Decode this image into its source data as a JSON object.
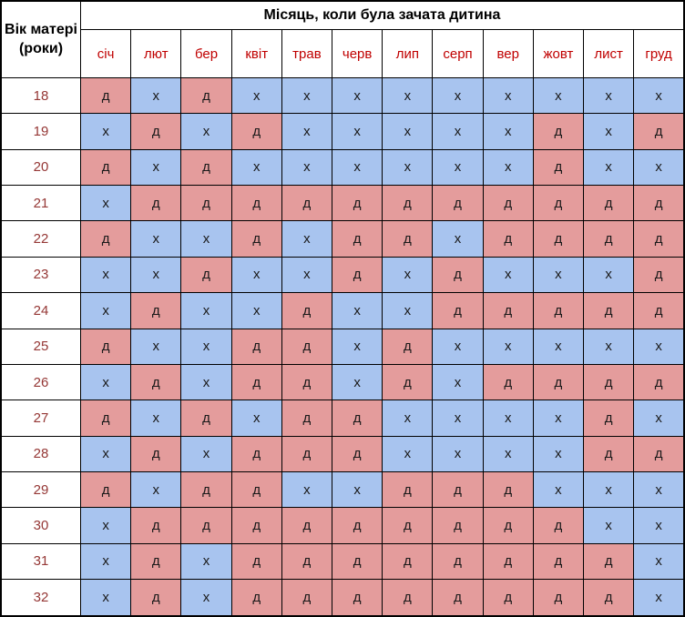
{
  "chart_data": {
    "type": "table",
    "title": "Місяць, коли була зачата дитина",
    "row_header_label": "Вік матері (роки)",
    "columns": [
      "січ",
      "лют",
      "бер",
      "квіт",
      "трав",
      "черв",
      "лип",
      "серп",
      "вер",
      "жовт",
      "лист",
      "груд"
    ],
    "row_labels": [
      "18",
      "19",
      "20",
      "21",
      "22",
      "23",
      "24",
      "25",
      "26",
      "27",
      "28",
      "29",
      "30",
      "31",
      "32"
    ],
    "values": [
      [
        "д",
        "х",
        "д",
        "х",
        "х",
        "х",
        "х",
        "х",
        "х",
        "х",
        "х",
        "х"
      ],
      [
        "х",
        "д",
        "х",
        "д",
        "х",
        "х",
        "х",
        "х",
        "х",
        "д",
        "х",
        "д"
      ],
      [
        "д",
        "х",
        "д",
        "х",
        "х",
        "х",
        "х",
        "х",
        "х",
        "д",
        "х",
        "х"
      ],
      [
        "х",
        "д",
        "д",
        "д",
        "д",
        "д",
        "д",
        "д",
        "д",
        "д",
        "д",
        "д"
      ],
      [
        "д",
        "х",
        "х",
        "д",
        "х",
        "д",
        "д",
        "х",
        "д",
        "д",
        "д",
        "д"
      ],
      [
        "х",
        "х",
        "д",
        "х",
        "х",
        "д",
        "х",
        "д",
        "х",
        "х",
        "х",
        "д"
      ],
      [
        "х",
        "д",
        "х",
        "х",
        "д",
        "х",
        "х",
        "д",
        "д",
        "д",
        "д",
        "д"
      ],
      [
        "д",
        "х",
        "х",
        "д",
        "д",
        "х",
        "д",
        "х",
        "х",
        "х",
        "х",
        "х"
      ],
      [
        "х",
        "д",
        "х",
        "д",
        "д",
        "х",
        "д",
        "х",
        "д",
        "д",
        "д",
        "д"
      ],
      [
        "д",
        "х",
        "д",
        "х",
        "д",
        "д",
        "х",
        "х",
        "х",
        "х",
        "д",
        "х"
      ],
      [
        "х",
        "д",
        "х",
        "д",
        "д",
        "д",
        "х",
        "х",
        "х",
        "х",
        "д",
        "д"
      ],
      [
        "д",
        "х",
        "д",
        "д",
        "х",
        "х",
        "д",
        "д",
        "д",
        "х",
        "х",
        "х"
      ],
      [
        "х",
        "д",
        "д",
        "д",
        "д",
        "д",
        "д",
        "д",
        "д",
        "д",
        "х",
        "х"
      ],
      [
        "х",
        "д",
        "х",
        "д",
        "д",
        "д",
        "д",
        "д",
        "д",
        "д",
        "д",
        "х"
      ],
      [
        "х",
        "д",
        "х",
        "д",
        "д",
        "д",
        "д",
        "д",
        "д",
        "д",
        "д",
        "х"
      ]
    ],
    "cell_color_map": {
      "д": "#E49C9C",
      "х": "#A8C4EF"
    },
    "layout": {
      "grid": "on",
      "header_text_color": "#000000",
      "month_label_color": "#C00000",
      "age_label_color": "#953735",
      "cell_text_color": "#1A1A1A",
      "border_color": "#000000"
    }
  }
}
